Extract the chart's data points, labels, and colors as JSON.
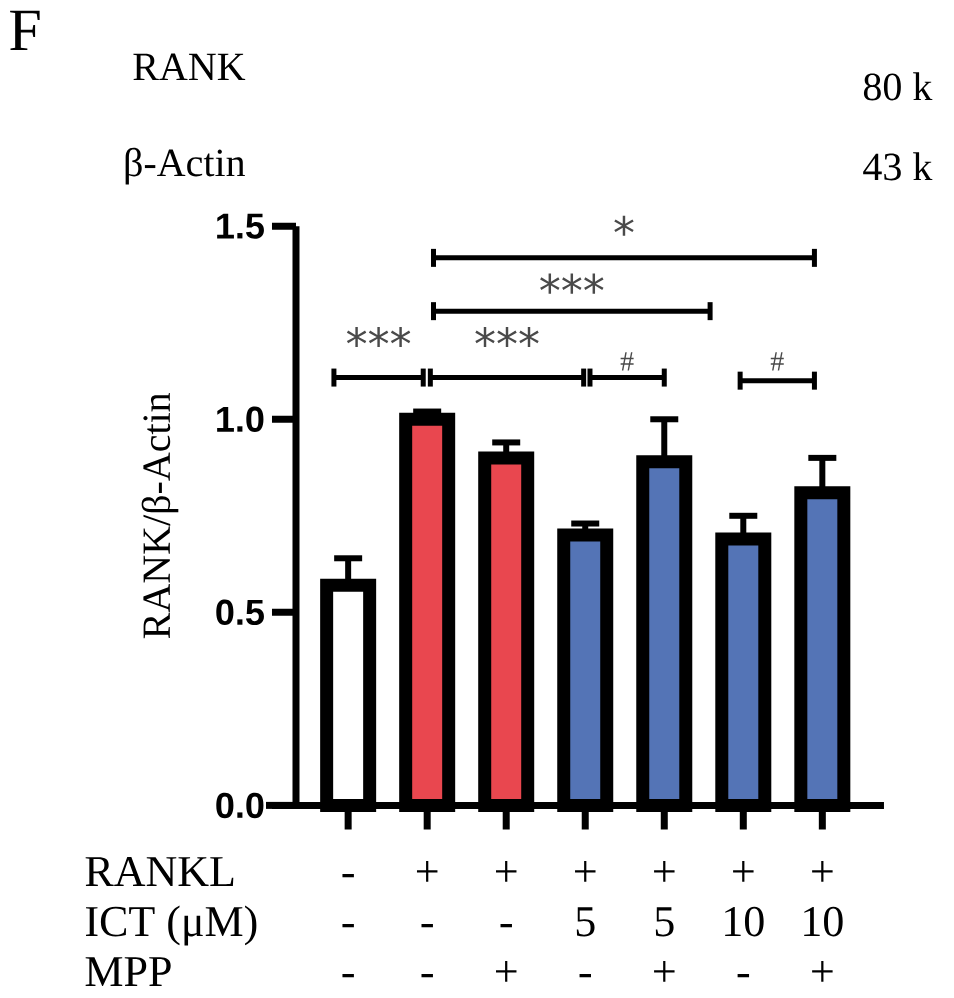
{
  "chart_data": {
    "type": "bar",
    "ylabel": "RANK/β-Actin",
    "categories": [
      null,
      null,
      null,
      null,
      null,
      null,
      null
    ],
    "values": [
      0.57,
      1.0,
      0.9,
      0.7,
      0.89,
      0.69,
      0.81
    ],
    "colors": [
      "#ffffff",
      "#e9474f",
      "#e9474f",
      "#5474b6",
      "#5474b6",
      "#5474b6",
      "#5474b6"
    ],
    "errors": [
      [
        0.57,
        0.64
      ],
      [
        1.0,
        1.02
      ],
      [
        0.9,
        0.94
      ],
      [
        0.7,
        0.73
      ],
      [
        0.89,
        1.0
      ],
      [
        0.69,
        0.75
      ],
      [
        0.81,
        0.9
      ]
    ],
    "ylim": [
      0,
      1.5
    ],
    "yticks": [
      {
        "value": 0,
        "label": "0.0"
      },
      0.5,
      {
        "value": 1,
        "label": "1.0"
      },
      1.5
    ],
    "tick_labels": "y",
    "annotations": [
      "F",
      "RANK",
      "β-Actin",
      "80 k",
      "43 k",
      "***",
      "***",
      "#",
      "#",
      "***",
      "*",
      "RANKL",
      "ICT (μM)",
      "MPP",
      "-",
      "+",
      "+",
      "+",
      "+",
      "+",
      "+",
      "-",
      "-",
      "-",
      "5",
      "5",
      "10",
      "10",
      "-",
      "-",
      "+",
      "-",
      "+",
      "-",
      "+"
    ]
  }
}
